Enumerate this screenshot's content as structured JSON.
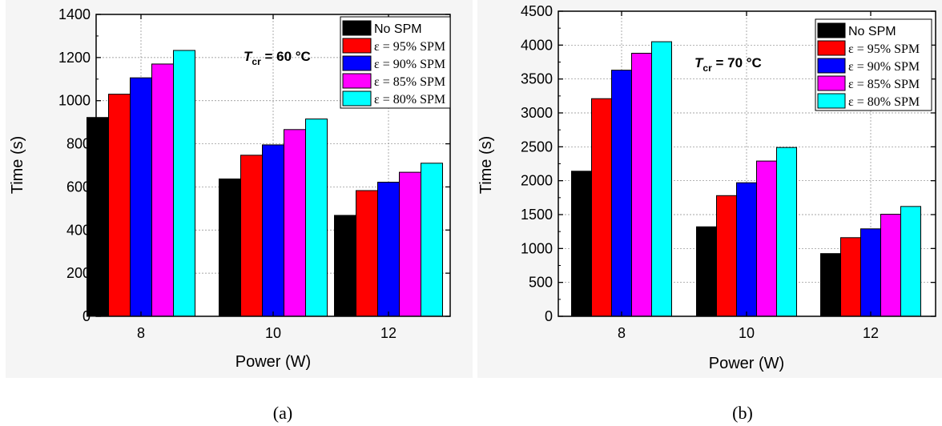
{
  "chart_data": [
    {
      "type": "bar",
      "caption": "(a)",
      "annotation": {
        "symbol": "T",
        "subscript": "cr",
        "value": " = 60 °C"
      },
      "xlabel": "Power (W)",
      "ylabel": "Time (s)",
      "ylim": [
        0,
        1400
      ],
      "yticks": [
        0,
        200,
        400,
        600,
        800,
        1000,
        1200,
        1400
      ],
      "categories": [
        "8",
        "10",
        "12"
      ],
      "grid": true,
      "legend_position": "top-right",
      "series": [
        {
          "name": "No SPM",
          "color": "#000000",
          "values": [
            922,
            637,
            468
          ]
        },
        {
          "name": "ε = 95% SPM",
          "color": "#ff0000",
          "values": [
            1030,
            747,
            583
          ]
        },
        {
          "name": "ε = 90% SPM",
          "color": "#0000ff",
          "values": [
            1106,
            795,
            622
          ]
        },
        {
          "name": "ε = 85% SPM",
          "color": "#ff00ff",
          "values": [
            1170,
            866,
            668
          ]
        },
        {
          "name": "ε = 80% SPM",
          "color": "#00ffff",
          "values": [
            1233,
            915,
            710
          ]
        }
      ]
    },
    {
      "type": "bar",
      "caption": "(b)",
      "annotation": {
        "symbol": "T",
        "subscript": "cr",
        "value": " = 70 °C"
      },
      "xlabel": "Power (W)",
      "ylabel": "Time (s)",
      "ylim": [
        0,
        4500
      ],
      "yticks": [
        0,
        500,
        1000,
        1500,
        2000,
        2500,
        3000,
        3500,
        4000,
        4500
      ],
      "categories": [
        "8",
        "10",
        "12"
      ],
      "grid": true,
      "legend_position": "top-right",
      "series": [
        {
          "name": "No SPM",
          "color": "#000000",
          "values": [
            2140,
            1320,
            925
          ]
        },
        {
          "name": "ε = 95% SPM",
          "color": "#ff0000",
          "values": [
            3210,
            1780,
            1160
          ]
        },
        {
          "name": "ε = 90% SPM",
          "color": "#0000ff",
          "values": [
            3630,
            1970,
            1290
          ]
        },
        {
          "name": "ε = 85% SPM",
          "color": "#ff00ff",
          "values": [
            3880,
            2290,
            1505
          ]
        },
        {
          "name": "ε = 80% SPM",
          "color": "#00ffff",
          "values": [
            4050,
            2490,
            1620
          ]
        }
      ]
    }
  ]
}
